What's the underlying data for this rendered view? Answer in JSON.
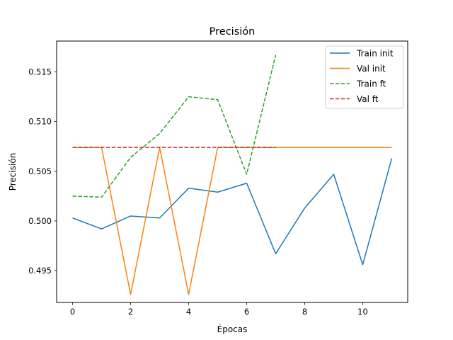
{
  "chart_data": {
    "type": "line",
    "title": "Precisión",
    "xlabel": "Épocas",
    "ylabel": "Precisión",
    "xlim": [
      -0.55,
      11.55
    ],
    "ylim": [
      0.4918,
      0.5181
    ],
    "xticks": [
      0,
      2,
      4,
      6,
      8,
      10
    ],
    "yticks": [
      0.495,
      0.5,
      0.505,
      0.51,
      0.515
    ],
    "ytick_labels": [
      "0.495",
      "0.500",
      "0.505",
      "0.510",
      "0.515"
    ],
    "grid": false,
    "legend_position": "top-right",
    "series": [
      {
        "name": "Train init",
        "color": "#1f77b4",
        "dash": "solid",
        "x": [
          0,
          1,
          2,
          3,
          4,
          5,
          6,
          7,
          8,
          9,
          10,
          11
        ],
        "y": [
          0.5003,
          0.4992,
          0.5005,
          0.5003,
          0.5033,
          0.5029,
          0.5038,
          0.4967,
          0.5013,
          0.5047,
          0.4956,
          0.5063
        ]
      },
      {
        "name": "Val init",
        "color": "#ff7f0e",
        "dash": "solid",
        "x": [
          0,
          1,
          2,
          3,
          4,
          5,
          6,
          7,
          8,
          9,
          10,
          11
        ],
        "y": [
          0.5074,
          0.5074,
          0.4926,
          0.5074,
          0.4926,
          0.5074,
          0.5074,
          0.5074,
          0.5074,
          0.5074,
          0.5074,
          0.5074
        ]
      },
      {
        "name": "Train ft",
        "color": "#2ca02c",
        "dash": "dashed",
        "x": [
          0,
          1,
          2,
          3,
          4,
          5,
          6,
          7
        ],
        "y": [
          0.5025,
          0.5024,
          0.5064,
          0.5088,
          0.5125,
          0.5122,
          0.5047,
          0.5167
        ]
      },
      {
        "name": "Val ft",
        "color": "#d62728",
        "dash": "dashed",
        "x": [
          0,
          1,
          2,
          3,
          4,
          5,
          6,
          7
        ],
        "y": [
          0.5074,
          0.5074,
          0.5074,
          0.5074,
          0.5074,
          0.5074,
          0.5074,
          0.5074
        ]
      }
    ]
  }
}
